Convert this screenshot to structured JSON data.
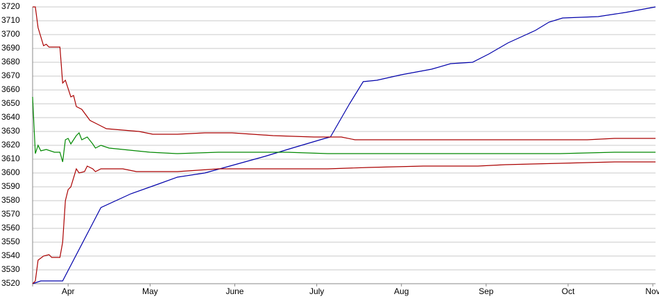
{
  "chart_data": {
    "type": "line",
    "xlim": [
      -13,
      215
    ],
    "xticks": [
      {
        "value": 0,
        "label": "Apr"
      },
      {
        "value": 30,
        "label": "May"
      },
      {
        "value": 61,
        "label": "June"
      },
      {
        "value": 91,
        "label": "July"
      },
      {
        "value": 122,
        "label": "Aug"
      },
      {
        "value": 153,
        "label": "Sep"
      },
      {
        "value": 183,
        "label": "Oct"
      },
      {
        "value": 214,
        "label": "Nov"
      }
    ],
    "ylim": [
      3520,
      3720
    ],
    "yticks": [
      3520,
      3530,
      3540,
      3550,
      3560,
      3570,
      3580,
      3590,
      3600,
      3610,
      3620,
      3630,
      3640,
      3650,
      3660,
      3670,
      3680,
      3690,
      3700,
      3710,
      3720
    ],
    "grid": true,
    "series": [
      {
        "color": "#0000aa",
        "x": [
          -13,
          -10,
          -2,
          12,
          23,
          33,
          40,
          50,
          61,
          72,
          82,
          94,
          96,
          103,
          108,
          113,
          122,
          133,
          140,
          148,
          154,
          161,
          171,
          176,
          181,
          194,
          204,
          215
        ],
        "values": [
          3520,
          3522,
          3522,
          3575,
          3585,
          3592,
          3597,
          3600,
          3606,
          3612,
          3618,
          3625,
          3626,
          3650,
          3666,
          3667,
          3671,
          3675,
          3679,
          3680,
          3686,
          3694,
          3703,
          3709,
          3712,
          3713,
          3716,
          3720
        ]
      },
      {
        "color": "#aa0000",
        "x": [
          -13,
          -12,
          -11,
          -9,
          -8,
          -7,
          -3,
          -2,
          -1,
          1,
          2,
          3,
          5,
          8,
          11,
          14,
          20,
          26,
          31,
          40,
          50,
          60,
          75,
          90,
          100,
          105,
          130,
          160,
          190,
          200,
          215
        ],
        "values": [
          3720,
          3720,
          3705,
          3692,
          3693,
          3691,
          3691,
          3665,
          3667,
          3655,
          3656,
          3648,
          3646,
          3638,
          3635,
          3632,
          3631,
          3630,
          3628,
          3628,
          3629,
          3629,
          3627,
          3626,
          3626,
          3624,
          3624,
          3624,
          3624,
          3625,
          3625
        ]
      },
      {
        "color": "#008800",
        "x": [
          -13,
          -12,
          -11,
          -10,
          -8,
          -5,
          -3,
          -2,
          -1,
          0,
          1,
          3,
          4,
          5,
          7,
          9,
          10,
          12,
          15,
          20,
          30,
          40,
          55,
          80,
          95,
          110,
          150,
          180,
          200,
          215
        ],
        "values": [
          3655,
          3614,
          3620,
          3616,
          3617,
          3615,
          3615,
          3608,
          3624,
          3625,
          3621,
          3627,
          3629,
          3624,
          3626,
          3621,
          3618,
          3620,
          3618,
          3617,
          3615,
          3614,
          3615,
          3615,
          3614,
          3614,
          3614,
          3614,
          3615,
          3615
        ]
      },
      {
        "color": "#aa0000",
        "x": [
          -13,
          -12,
          -11,
          -9,
          -7,
          -6,
          -3,
          -2,
          -1,
          0,
          1,
          3,
          4,
          6,
          7,
          9,
          10,
          12,
          20,
          25,
          40,
          55,
          80,
          95,
          110,
          130,
          150,
          160,
          180,
          200,
          215
        ],
        "values": [
          3520,
          3522,
          3537,
          3540,
          3541,
          3539,
          3539,
          3550,
          3580,
          3588,
          3590,
          3603,
          3600,
          3601,
          3605,
          3603,
          3601,
          3603,
          3603,
          3601,
          3601,
          3603,
          3603,
          3603,
          3604,
          3605,
          3605,
          3606,
          3607,
          3608,
          3608
        ]
      }
    ]
  }
}
